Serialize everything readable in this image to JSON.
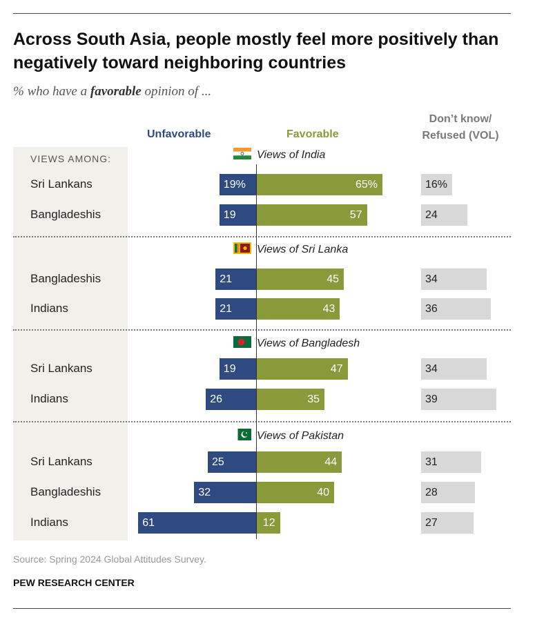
{
  "title": "Across South Asia, people mostly feel more positively than negatively toward neighboring countries",
  "subtitle": {
    "prefix": "% who have a ",
    "emphasis": "favorable",
    "suffix": " opinion of ..."
  },
  "headers": {
    "unfavorable": "Unfavorable",
    "favorable": "Favorable",
    "dk_line1": "Don’t know/",
    "dk_line2": "Refused (VOL)"
  },
  "views_among": "VIEWS AMONG:",
  "colors": {
    "unfavorable": "#2e4a80",
    "favorable": "#8a9a3a",
    "dont_know": "#d8d8d8"
  },
  "chart_data": {
    "type": "bar",
    "subtype": "diverging-stacked-horizontal",
    "series": [
      {
        "name": "Unfavorable"
      },
      {
        "name": "Favorable"
      },
      {
        "name": "Don’t know/Refused (VOL)"
      }
    ],
    "sections": [
      {
        "title": "Views of India",
        "flag": "india-flag-icon",
        "rows": [
          {
            "label": "Sri Lankans",
            "unfavorable": 19,
            "favorable": 65,
            "dont_know": 16,
            "unfav_text": "19%",
            "fav_text": "65%",
            "dk_text": "16%"
          },
          {
            "label": "Bangladeshis",
            "unfavorable": 19,
            "favorable": 57,
            "dont_know": 24,
            "unfav_text": "19",
            "fav_text": "57",
            "dk_text": "24"
          }
        ]
      },
      {
        "title": "Views of Sri Lanka",
        "flag": "sri-lanka-flag-icon",
        "rows": [
          {
            "label": "Bangladeshis",
            "unfavorable": 21,
            "favorable": 45,
            "dont_know": 34,
            "unfav_text": "21",
            "fav_text": "45",
            "dk_text": "34"
          },
          {
            "label": "Indians",
            "unfavorable": 21,
            "favorable": 43,
            "dont_know": 36,
            "unfav_text": "21",
            "fav_text": "43",
            "dk_text": "36"
          }
        ]
      },
      {
        "title": "Views of Bangladesh",
        "flag": "bangladesh-flag-icon",
        "rows": [
          {
            "label": "Sri Lankans",
            "unfavorable": 19,
            "favorable": 47,
            "dont_know": 34,
            "unfav_text": "19",
            "fav_text": "47",
            "dk_text": "34"
          },
          {
            "label": "Indians",
            "unfavorable": 26,
            "favorable": 35,
            "dont_know": 39,
            "unfav_text": "26",
            "fav_text": "35",
            "dk_text": "39"
          }
        ]
      },
      {
        "title": "Views of Pakistan",
        "flag": "pakistan-flag-icon",
        "rows": [
          {
            "label": "Sri Lankans",
            "unfavorable": 25,
            "favorable": 44,
            "dont_know": 31,
            "unfav_text": "25",
            "fav_text": "44",
            "dk_text": "31"
          },
          {
            "label": "Bangladeshis",
            "unfavorable": 32,
            "favorable": 40,
            "dont_know": 28,
            "unfav_text": "32",
            "fav_text": "40",
            "dk_text": "28"
          },
          {
            "label": "Indians",
            "unfavorable": 61,
            "favorable": 12,
            "dont_know": 27,
            "unfav_text": "61",
            "fav_text": "12",
            "dk_text": "27"
          }
        ]
      }
    ]
  },
  "source": "Source: Spring 2024 Global Attitudes Survey.",
  "org": "PEW RESEARCH CENTER"
}
